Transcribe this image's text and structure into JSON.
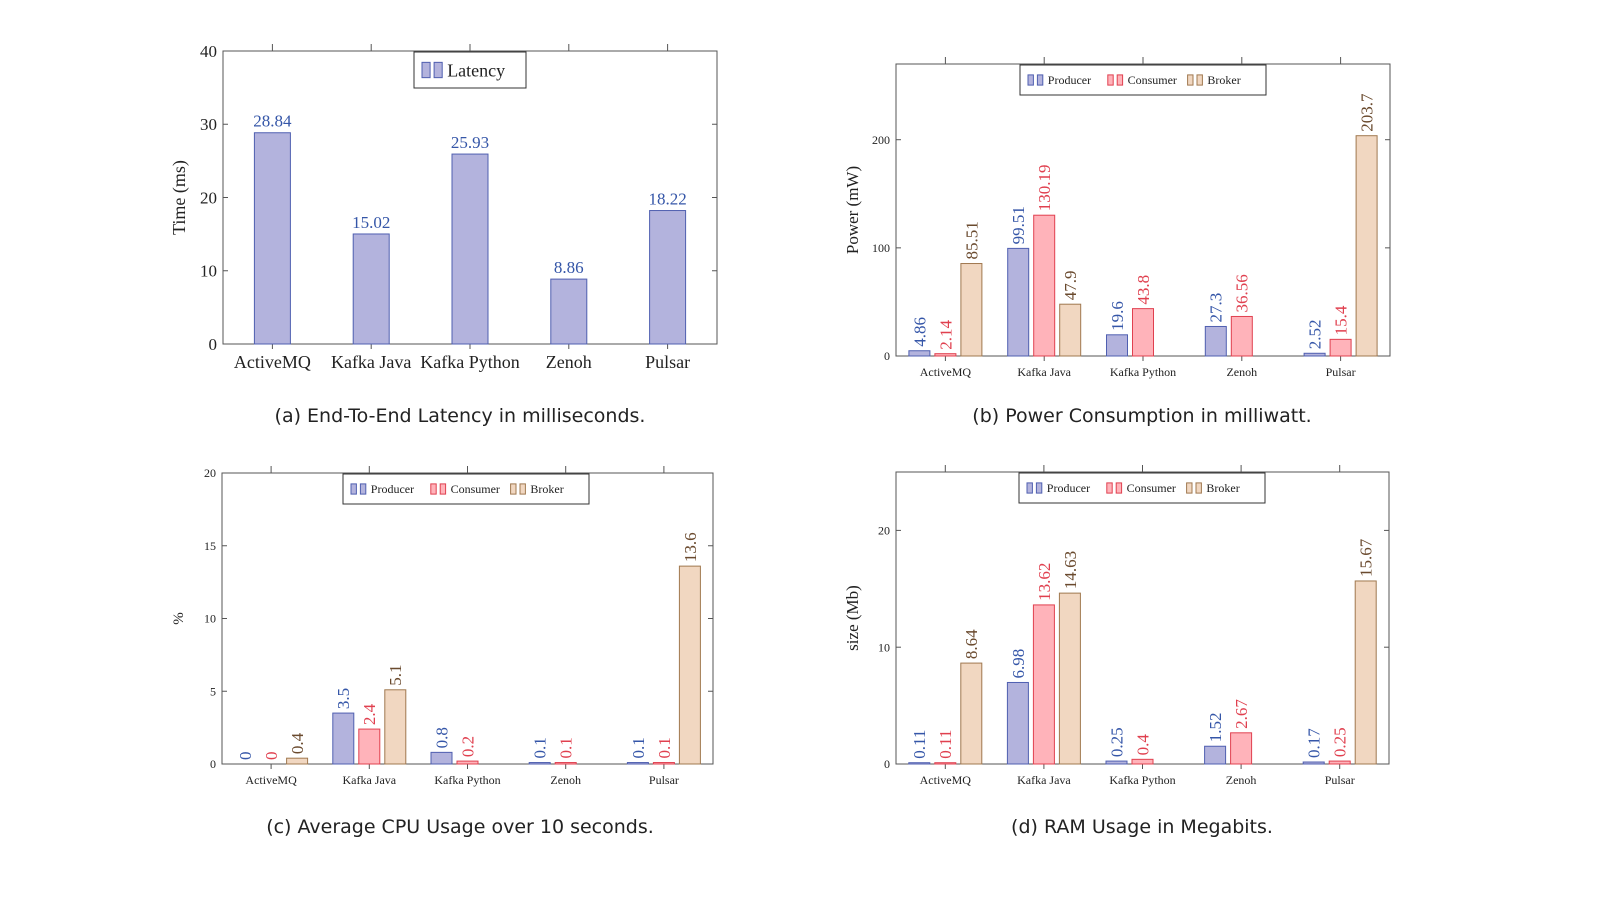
{
  "colors": {
    "producer_fill": "#b3b3dd",
    "producer_stroke": "#4f5fb0",
    "producer_label": "#3556a8",
    "consumer_fill": "#ffb3ba",
    "consumer_stroke": "#e0404f",
    "consumer_label": "#e0404f",
    "broker_fill": "#f1d7c1",
    "broker_stroke": "#a0784f",
    "broker_label": "#6a4a2e",
    "axis": "#555555",
    "tick_text": "#222222"
  },
  "chart_data": [
    {
      "id": "latency",
      "type": "bar",
      "caption": "(a) End-To-End Latency in milliseconds.",
      "categories": [
        "ActiveMQ",
        "Kafka Java",
        "Kafka Python",
        "Zenoh",
        "Pulsar"
      ],
      "series": [
        {
          "name": "Latency",
          "values": [
            28.84,
            15.02,
            25.93,
            8.86,
            18.22
          ],
          "labels": [
            "28.84",
            "15.02",
            "25.93",
            "8.86",
            "18.22"
          ]
        }
      ],
      "xlabel": "",
      "ylabel": "Time (ms)",
      "ylim": [
        0,
        40
      ],
      "yticks": [
        0,
        10,
        20,
        30,
        40
      ],
      "legend": "top-center",
      "grid": false
    },
    {
      "id": "power",
      "type": "bar",
      "caption": "(b) Power Consumption in milliwatt.",
      "categories": [
        "ActiveMQ",
        "Kafka Java",
        "Kafka Python",
        "Zenoh",
        "Pulsar"
      ],
      "series": [
        {
          "name": "Producer",
          "values": [
            4.86,
            99.51,
            19.6,
            27.3,
            2.52
          ],
          "labels": [
            "4.86",
            "99.51",
            "19.6",
            "27.3",
            "2.52"
          ]
        },
        {
          "name": "Consumer",
          "values": [
            2.14,
            130.19,
            43.8,
            36.56,
            15.4
          ],
          "labels": [
            "2.14",
            "130.19",
            "43.8",
            "36.56",
            "15.4"
          ]
        },
        {
          "name": "Broker",
          "values": [
            85.51,
            47.9,
            null,
            null,
            203.7
          ],
          "labels": [
            "85.51",
            "47.9",
            null,
            null,
            "203.7"
          ]
        }
      ],
      "xlabel": "",
      "ylabel": "Power (mW)",
      "ylim": [
        0,
        270
      ],
      "yticks": [
        0,
        100,
        200
      ],
      "legend": "top-center",
      "grid": false
    },
    {
      "id": "cpu",
      "type": "bar",
      "caption": "(c) Average CPU Usage over 10 seconds.",
      "categories": [
        "ActiveMQ",
        "Kafka Java",
        "Kafka Python",
        "Zenoh",
        "Pulsar"
      ],
      "series": [
        {
          "name": "Producer",
          "values": [
            0,
            3.5,
            0.8,
            0.1,
            0.1
          ],
          "labels": [
            "0",
            "3.5",
            "0.8",
            "0.1",
            "0.1"
          ]
        },
        {
          "name": "Consumer",
          "values": [
            0,
            2.4,
            0.2,
            0.1,
            0.1
          ],
          "labels": [
            "0",
            "2.4",
            "0.2",
            "0.1",
            "0.1"
          ]
        },
        {
          "name": "Broker",
          "values": [
            0.4,
            5.1,
            null,
            null,
            13.6
          ],
          "labels": [
            "0.4",
            "5.1",
            null,
            null,
            "13.6"
          ]
        }
      ],
      "xlabel": "",
      "ylabel": "%",
      "ylim": [
        0,
        20
      ],
      "yticks": [
        0,
        5,
        10,
        15,
        20
      ],
      "legend": "top-center",
      "grid": false
    },
    {
      "id": "ram",
      "type": "bar",
      "caption": "(d) RAM Usage in Megabits.",
      "categories": [
        "ActiveMQ",
        "Kafka Java",
        "Kafka Python",
        "Zenoh",
        "Pulsar"
      ],
      "series": [
        {
          "name": "Producer",
          "values": [
            0.11,
            6.98,
            0.25,
            1.52,
            0.17
          ],
          "labels": [
            "0.11",
            "6.98",
            "0.25",
            "1.52",
            "0.17"
          ]
        },
        {
          "name": "Consumer",
          "values": [
            0.11,
            13.62,
            0.4,
            2.67,
            0.25
          ],
          "labels": [
            "0.11",
            "13.62",
            "0.4",
            "2.67",
            "0.25"
          ]
        },
        {
          "name": "Broker",
          "values": [
            8.64,
            14.63,
            null,
            null,
            15.67
          ],
          "labels": [
            "8.64",
            "14.63",
            null,
            null,
            "15.67"
          ]
        }
      ],
      "xlabel": "",
      "ylabel": "size (Mb)",
      "ylim": [
        0,
        25
      ],
      "yticks": [
        0,
        10,
        20
      ],
      "legend": "top-center",
      "grid": false
    }
  ]
}
